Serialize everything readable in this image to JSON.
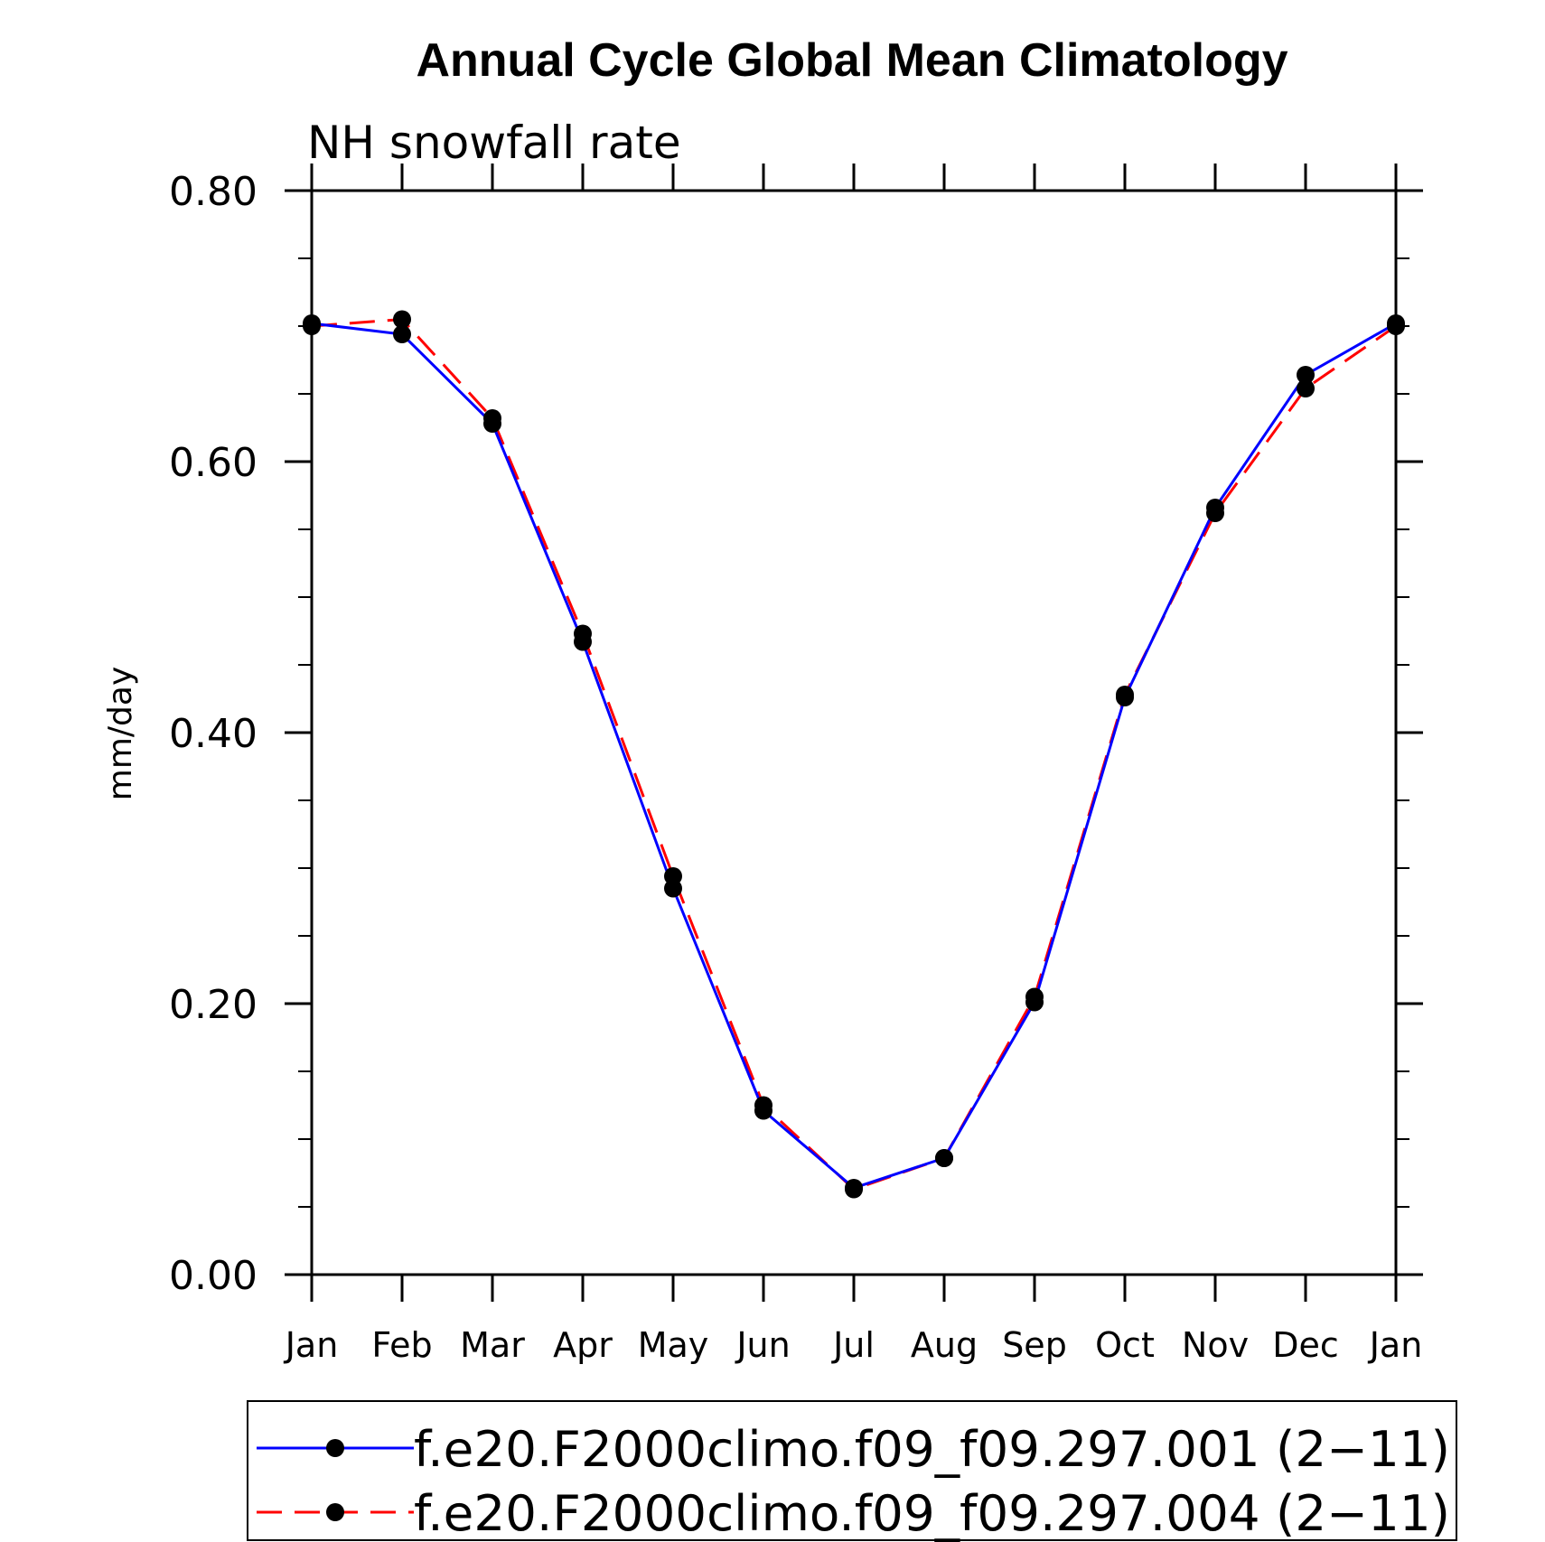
{
  "chart_data": {
    "type": "line",
    "title": "Annual Cycle Global Mean Climatology",
    "subtitle": "NH snowfall rate",
    "xlabel": "",
    "ylabel": "mm/day",
    "categories": [
      "Jan",
      "Feb",
      "Mar",
      "Apr",
      "May",
      "Jun",
      "Jul",
      "Aug",
      "Sep",
      "Oct",
      "Nov",
      "Dec",
      "Jan"
    ],
    "ylim": [
      0.0,
      0.8
    ],
    "yticks": [
      "0.00",
      "0.20",
      "0.40",
      "0.60",
      "0.80"
    ],
    "series": [
      {
        "name": "f.e20.F2000climo.f09_f09.297.001 (2−11)",
        "color": "#0000ff",
        "dash": "solid",
        "marker": "filled-circle",
        "values": [
          0.702,
          0.694,
          0.628,
          0.467,
          0.285,
          0.121,
          0.064,
          0.086,
          0.201,
          0.426,
          0.566,
          0.664,
          0.702
        ]
      },
      {
        "name": "f.e20.F2000climo.f09_f09.297.004 (2−11)",
        "color": "#ff0000",
        "dash": "dashed",
        "marker": "filled-circle",
        "values": [
          0.7,
          0.705,
          0.632,
          0.473,
          0.294,
          0.125,
          0.063,
          0.086,
          0.205,
          0.428,
          0.562,
          0.654,
          0.7
        ]
      }
    ],
    "legend_position": "bottom",
    "grid": false
  }
}
